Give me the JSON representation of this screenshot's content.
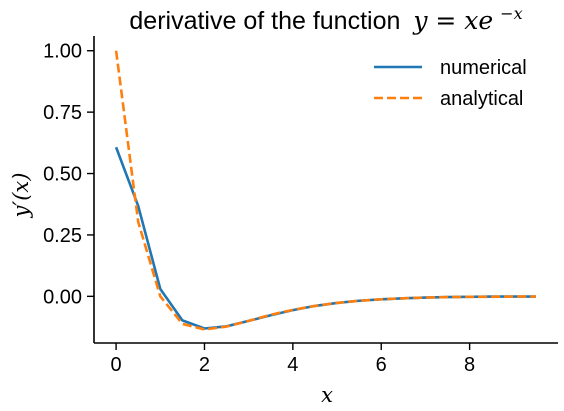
{
  "chart_data": {
    "type": "line",
    "title": "derivative of the function",
    "title_math": "y = xe",
    "title_math_sup": "−x",
    "xlabel": "x",
    "ylabel": "y′(x)",
    "xlim": [
      -0.5,
      10.0
    ],
    "ylim": [
      -0.19,
      1.06
    ],
    "x_ticks": [
      0,
      2,
      4,
      6,
      8
    ],
    "x_tick_labels": [
      "0",
      "2",
      "4",
      "6",
      "8"
    ],
    "y_ticks": [
      0.0,
      0.25,
      0.5,
      0.75,
      1.0
    ],
    "y_tick_labels": [
      "0.00",
      "0.25",
      "0.50",
      "0.75",
      "1.00"
    ],
    "grid": false,
    "legend_position": "top-right",
    "series": [
      {
        "name": "numerical",
        "color": "#1f77b4",
        "style": "solid",
        "x": [
          0,
          0.5,
          1.0,
          1.5,
          2.0,
          2.5,
          3.0,
          3.5,
          4.0,
          4.5,
          5.0,
          5.5,
          6.0,
          6.5,
          7.0,
          7.5,
          8.0,
          8.5,
          9.0,
          9.5
        ],
        "y": [
          0.607,
          0.368,
          0.03,
          -0.098,
          -0.131,
          -0.122,
          -0.1,
          -0.077,
          -0.056,
          -0.039,
          -0.027,
          -0.018,
          -0.012,
          -0.008,
          -0.005,
          -0.003,
          -0.002,
          -0.001,
          -0.001,
          -0.001
        ]
      },
      {
        "name": "analytical",
        "color": "#ff7f0e",
        "style": "dashed",
        "x": [
          0,
          0.5,
          1.0,
          1.5,
          2.0,
          2.5,
          3.0,
          3.5,
          4.0,
          4.5,
          5.0,
          5.5,
          6.0,
          6.5,
          7.0,
          7.5,
          8.0,
          8.5,
          9.0,
          9.5
        ],
        "y": [
          1.0,
          0.303,
          0.0,
          -0.112,
          -0.135,
          -0.123,
          -0.1,
          -0.075,
          -0.055,
          -0.039,
          -0.027,
          -0.018,
          -0.012,
          -0.008,
          -0.005,
          -0.003,
          -0.002,
          -0.002,
          -0.001,
          -0.001
        ]
      }
    ]
  }
}
